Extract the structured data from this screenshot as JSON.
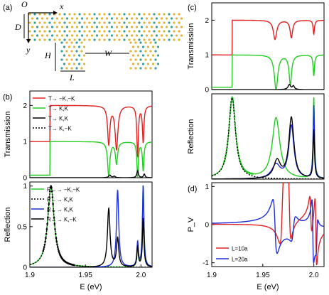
{
  "panel_labels": {
    "a": "(a)",
    "b": "(b)",
    "c": "(c)",
    "d": "(d)"
  },
  "structure": {
    "origin": "O",
    "x_axis": "x",
    "y_axis": "y",
    "dim_D": "D",
    "dim_H": "H",
    "dim_W": "W",
    "dim_L": "L"
  },
  "colors": {
    "red": "#e02020",
    "green": "#22cc22",
    "black": "#000000",
    "blue": "#1f2fd8",
    "atom_yellow": "#e2b33a",
    "atom_teal": "#3a9c9c"
  },
  "chart_data": [
    {
      "id": "b-top",
      "type": "line",
      "ylabel": "Transmission",
      "xlim": [
        1.9,
        2.01
      ],
      "ylim": [
        0,
        2.4
      ],
      "yticks": [
        "0",
        "1",
        "2"
      ],
      "legend": [
        {
          "text": "T→ −K,−K",
          "color": "#e02020",
          "style": "solid"
        },
        {
          "text": "T→ K,K",
          "color": "#22cc22",
          "style": "solid"
        },
        {
          "text": "T→ K,K",
          "color": "#000000",
          "style": "solid"
        },
        {
          "text": "T→ K,−K",
          "color": "#000000",
          "style": "dotted"
        }
      ],
      "series": [
        {
          "color": "#e02020",
          "baseline": 1,
          "step": [
            1.918,
            2
          ],
          "dips": [
            [
              1.971,
              1.05,
              0.0012
            ],
            [
              1.978,
              1.2,
              0.0015
            ],
            [
              1.997,
              1.4,
              0.0008
            ],
            [
              2.002,
              1.0,
              0.0008
            ]
          ]
        },
        {
          "color": "#22cc22",
          "baseline": 0.07,
          "step": [
            1.918,
            1
          ],
          "dips": [
            [
              1.971,
              0.95,
              0.0012
            ],
            [
              1.978,
              0.6,
              0.0012
            ],
            [
              1.997,
              0.95,
              0.0008
            ],
            [
              2.002,
              0.8,
              0.0008
            ]
          ]
        },
        {
          "color": "#000000",
          "baseline": 0,
          "peaks": [
            [
              1.972,
              0.07,
              0.0012
            ],
            [
              1.976,
              0.04,
              0.001
            ],
            [
              1.997,
              0.2,
              0.0008
            ],
            [
              2.003,
              0.1,
              0.0008
            ]
          ]
        }
      ]
    },
    {
      "id": "b-bottom",
      "type": "line",
      "ylabel": "Reflection",
      "xlabel": "E (eV)",
      "xlim": [
        1.9,
        2.01
      ],
      "ylim": [
        0,
        1.05
      ],
      "xticks": [
        "1.9",
        "1.95",
        "2.0"
      ],
      "yticks": [
        "0",
        "0.5",
        "1"
      ],
      "legend": [
        {
          "text": "R←→ −K,−K",
          "color": "#22cc22",
          "style": "solid"
        },
        {
          "text": "R←→ K,K",
          "color": "#000000",
          "style": "dotted"
        },
        {
          "text": "R←→ K,K",
          "color": "#1f2fd8",
          "style": "solid"
        },
        {
          "text": "R←→ K,−K",
          "color": "#000000",
          "style": "solid"
        }
      ],
      "series": [
        {
          "color": "#22cc22",
          "peaks": [
            [
              1.919,
              1.0,
              0.0035
            ],
            [
              1.997,
              0.2,
              0.0008
            ],
            [
              2.002,
              1.0,
              0.0008
            ]
          ]
        },
        {
          "color": "#000000",
          "dotted": true,
          "markers": true,
          "peaks": [
            [
              1.919,
              1.0,
              0.0035
            ]
          ]
        },
        {
          "color": "#1f2fd8",
          "peaks": [
            [
              1.979,
              0.95,
              0.0012
            ],
            [
              1.997,
              0.3,
              0.0008
            ],
            [
              2.002,
              1.0,
              0.0008
            ]
          ]
        },
        {
          "color": "#000000",
          "peaks": [
            [
              1.971,
              0.72,
              0.0014
            ],
            [
              1.979,
              0.35,
              0.0012
            ],
            [
              1.997,
              0.25,
              0.0008
            ],
            [
              2.002,
              0.6,
              0.0008
            ]
          ]
        }
      ]
    },
    {
      "id": "c-top",
      "type": "line",
      "ylabel": "Transmission",
      "xlim": [
        1.9,
        2.01
      ],
      "ylim": [
        0,
        2.5
      ],
      "yticks": [
        "0",
        "1",
        "2"
      ],
      "series": [
        {
          "color": "#e02020",
          "baseline": 1,
          "step": [
            1.92,
            2
          ],
          "dips": [
            [
              1.962,
              0.55,
              0.002
            ],
            [
              1.978,
              0.5,
              0.0015
            ],
            [
              2.0,
              0.4,
              0.0008
            ]
          ]
        },
        {
          "color": "#22cc22",
          "baseline": 0.07,
          "step": [
            1.92,
            1
          ],
          "dips": [
            [
              1.963,
              1.0,
              0.002
            ],
            [
              1.977,
              0.85,
              0.0015
            ],
            [
              2.0,
              0.6,
              0.0008
            ]
          ]
        },
        {
          "color": "#000000",
          "baseline": 0,
          "peaks": [
            [
              1.976,
              0.14,
              0.0015
            ],
            [
              1.98,
              0.1,
              0.0012
            ]
          ]
        }
      ]
    },
    {
      "id": "c-mid",
      "type": "line",
      "ylabel": "Reflection",
      "xlim": [
        1.9,
        2.01
      ],
      "ylim": [
        0,
        1.05
      ],
      "series": [
        {
          "color": "#22cc22",
          "markers": true,
          "peaks": [
            [
              1.92,
              1.0,
              0.004
            ],
            [
              1.963,
              0.75,
              0.0045
            ],
            [
              2.0,
              1.0,
              0.0008
            ]
          ]
        },
        {
          "color": "#000000",
          "dotted": true,
          "peaks": [
            [
              1.92,
              1.0,
              0.004
            ]
          ]
        },
        {
          "color": "#1f2fd8",
          "peaks": [
            [
              1.963,
              0.17,
              0.005
            ],
            [
              1.978,
              0.65,
              0.003
            ],
            [
              2.0,
              0.9,
              0.0008
            ]
          ]
        },
        {
          "color": "#000000",
          "peaks": [
            [
              1.964,
              0.22,
              0.004
            ],
            [
              1.978,
              0.75,
              0.003
            ],
            [
              2.0,
              0.6,
              0.0008
            ]
          ]
        }
      ]
    },
    {
      "id": "d",
      "type": "line",
      "ylabel": "P_V",
      "xlabel": "E (eV)",
      "xlim": [
        1.9,
        2.01
      ],
      "ylim": [
        -1.1,
        1.1
      ],
      "xticks": [
        "1.9",
        "1.95",
        "2.0"
      ],
      "yticks": [
        "-1",
        "0",
        "1"
      ],
      "legend": [
        {
          "text": "L=10a",
          "color": "#e02020",
          "style": "solid"
        },
        {
          "text": "L=20a",
          "color": "#1f2fd8",
          "style": "solid"
        }
      ],
      "series": [
        {
          "color": "#e02020",
          "name": "L=10a",
          "disp": [
            [
              1.969,
              0.85,
              0.002
            ],
            [
              1.976,
              -0.85,
              0.0015
            ],
            [
              1.997,
              -0.5,
              0.001
            ],
            [
              2.002,
              -0.9,
              0.0008
            ]
          ]
        },
        {
          "color": "#1f2fd8",
          "name": "L=20a",
          "disp": [
            [
              1.962,
              -0.7,
              0.002
            ],
            [
              1.98,
              0.3,
              0.002
            ],
            [
              1.999,
              -0.8,
              0.0008
            ],
            [
              2.003,
              0.4,
              0.0008
            ]
          ]
        }
      ]
    }
  ]
}
